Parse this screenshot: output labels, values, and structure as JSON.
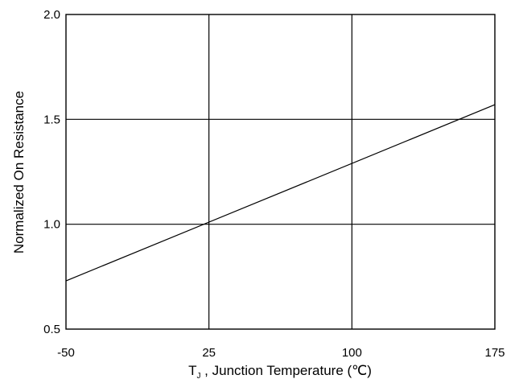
{
  "chart_data": {
    "type": "line",
    "title": "",
    "xlabel": "Tⱼ , Junction Temperature (℃)",
    "xlabel_parts": {
      "symbol": "T",
      "subscript": "J",
      "rest": " , Junction Temperature (℃)"
    },
    "ylabel": "Normalized On Resistance",
    "xlim": [
      -50,
      175
    ],
    "ylim": [
      0.5,
      2.0
    ],
    "x_ticks": [
      -50,
      25,
      100,
      175
    ],
    "x_tick_labels": [
      "-50",
      "25",
      "100",
      "175"
    ],
    "y_ticks": [
      0.5,
      1.0,
      1.5,
      2.0
    ],
    "y_tick_labels": [
      "0.5",
      "1.0",
      "1.5",
      "2.0"
    ],
    "grid": true,
    "legend": "none",
    "series": [
      {
        "x": [
          -50,
          175
        ],
        "y": [
          0.73,
          1.57
        ]
      }
    ]
  }
}
